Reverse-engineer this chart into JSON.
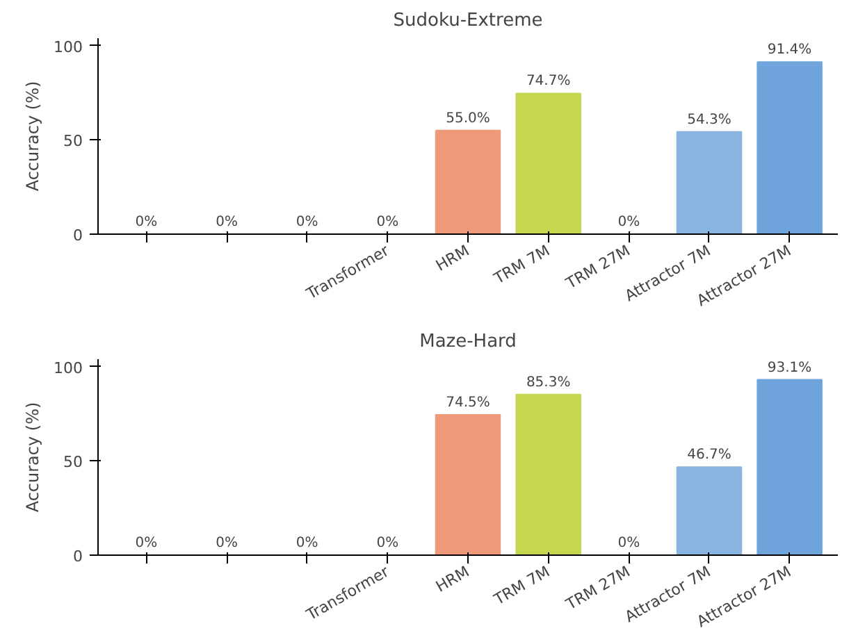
{
  "chart_data": [
    {
      "type": "bar",
      "title": "Sudoku-Extreme",
      "ylabel": "Accuracy (%)",
      "categories": [
        null,
        null,
        null,
        "Transformer",
        "HRM",
        "TRM 7M",
        "TRM 27M",
        "Attractor 7M",
        "Attractor 27M"
      ],
      "values": [
        0,
        0,
        0,
        0,
        55.0,
        74.7,
        0,
        54.3,
        91.4
      ],
      "colors": [
        "#5aa469",
        "#5aa469",
        "#5aa469",
        "#5aa469",
        "#ee9a7a",
        "#c5d64f",
        "#c5d64f",
        "#8ab4e0",
        "#6fa5dc"
      ],
      "value_labels": [
        "0%",
        "0%",
        "0%",
        "0%",
        "55.0%",
        "74.7%",
        "0%",
        "54.3%",
        "91.4%"
      ],
      "ylim": [
        0,
        104
      ],
      "yticks": [
        0,
        50,
        100
      ],
      "grid": false
    },
    {
      "type": "bar",
      "title": "Maze-Hard",
      "ylabel": "Accuracy (%)",
      "categories": [
        null,
        null,
        null,
        "Transformer",
        "HRM",
        "TRM 7M",
        "TRM 27M",
        "Attractor 7M",
        "Attractor 27M"
      ],
      "values": [
        0,
        0,
        0,
        0,
        74.5,
        85.3,
        0,
        46.7,
        93.1
      ],
      "colors": [
        "#5aa469",
        "#5aa469",
        "#5aa469",
        "#5aa469",
        "#ee9a7a",
        "#c5d64f",
        "#c5d64f",
        "#8ab4e0",
        "#6fa5dc"
      ],
      "value_labels": [
        "0%",
        "0%",
        "0%",
        "0%",
        "74.5%",
        "85.3%",
        "0%",
        "46.7%",
        "93.1%"
      ],
      "ylim": [
        0,
        104
      ],
      "yticks": [
        0,
        50,
        100
      ],
      "grid": false
    }
  ]
}
